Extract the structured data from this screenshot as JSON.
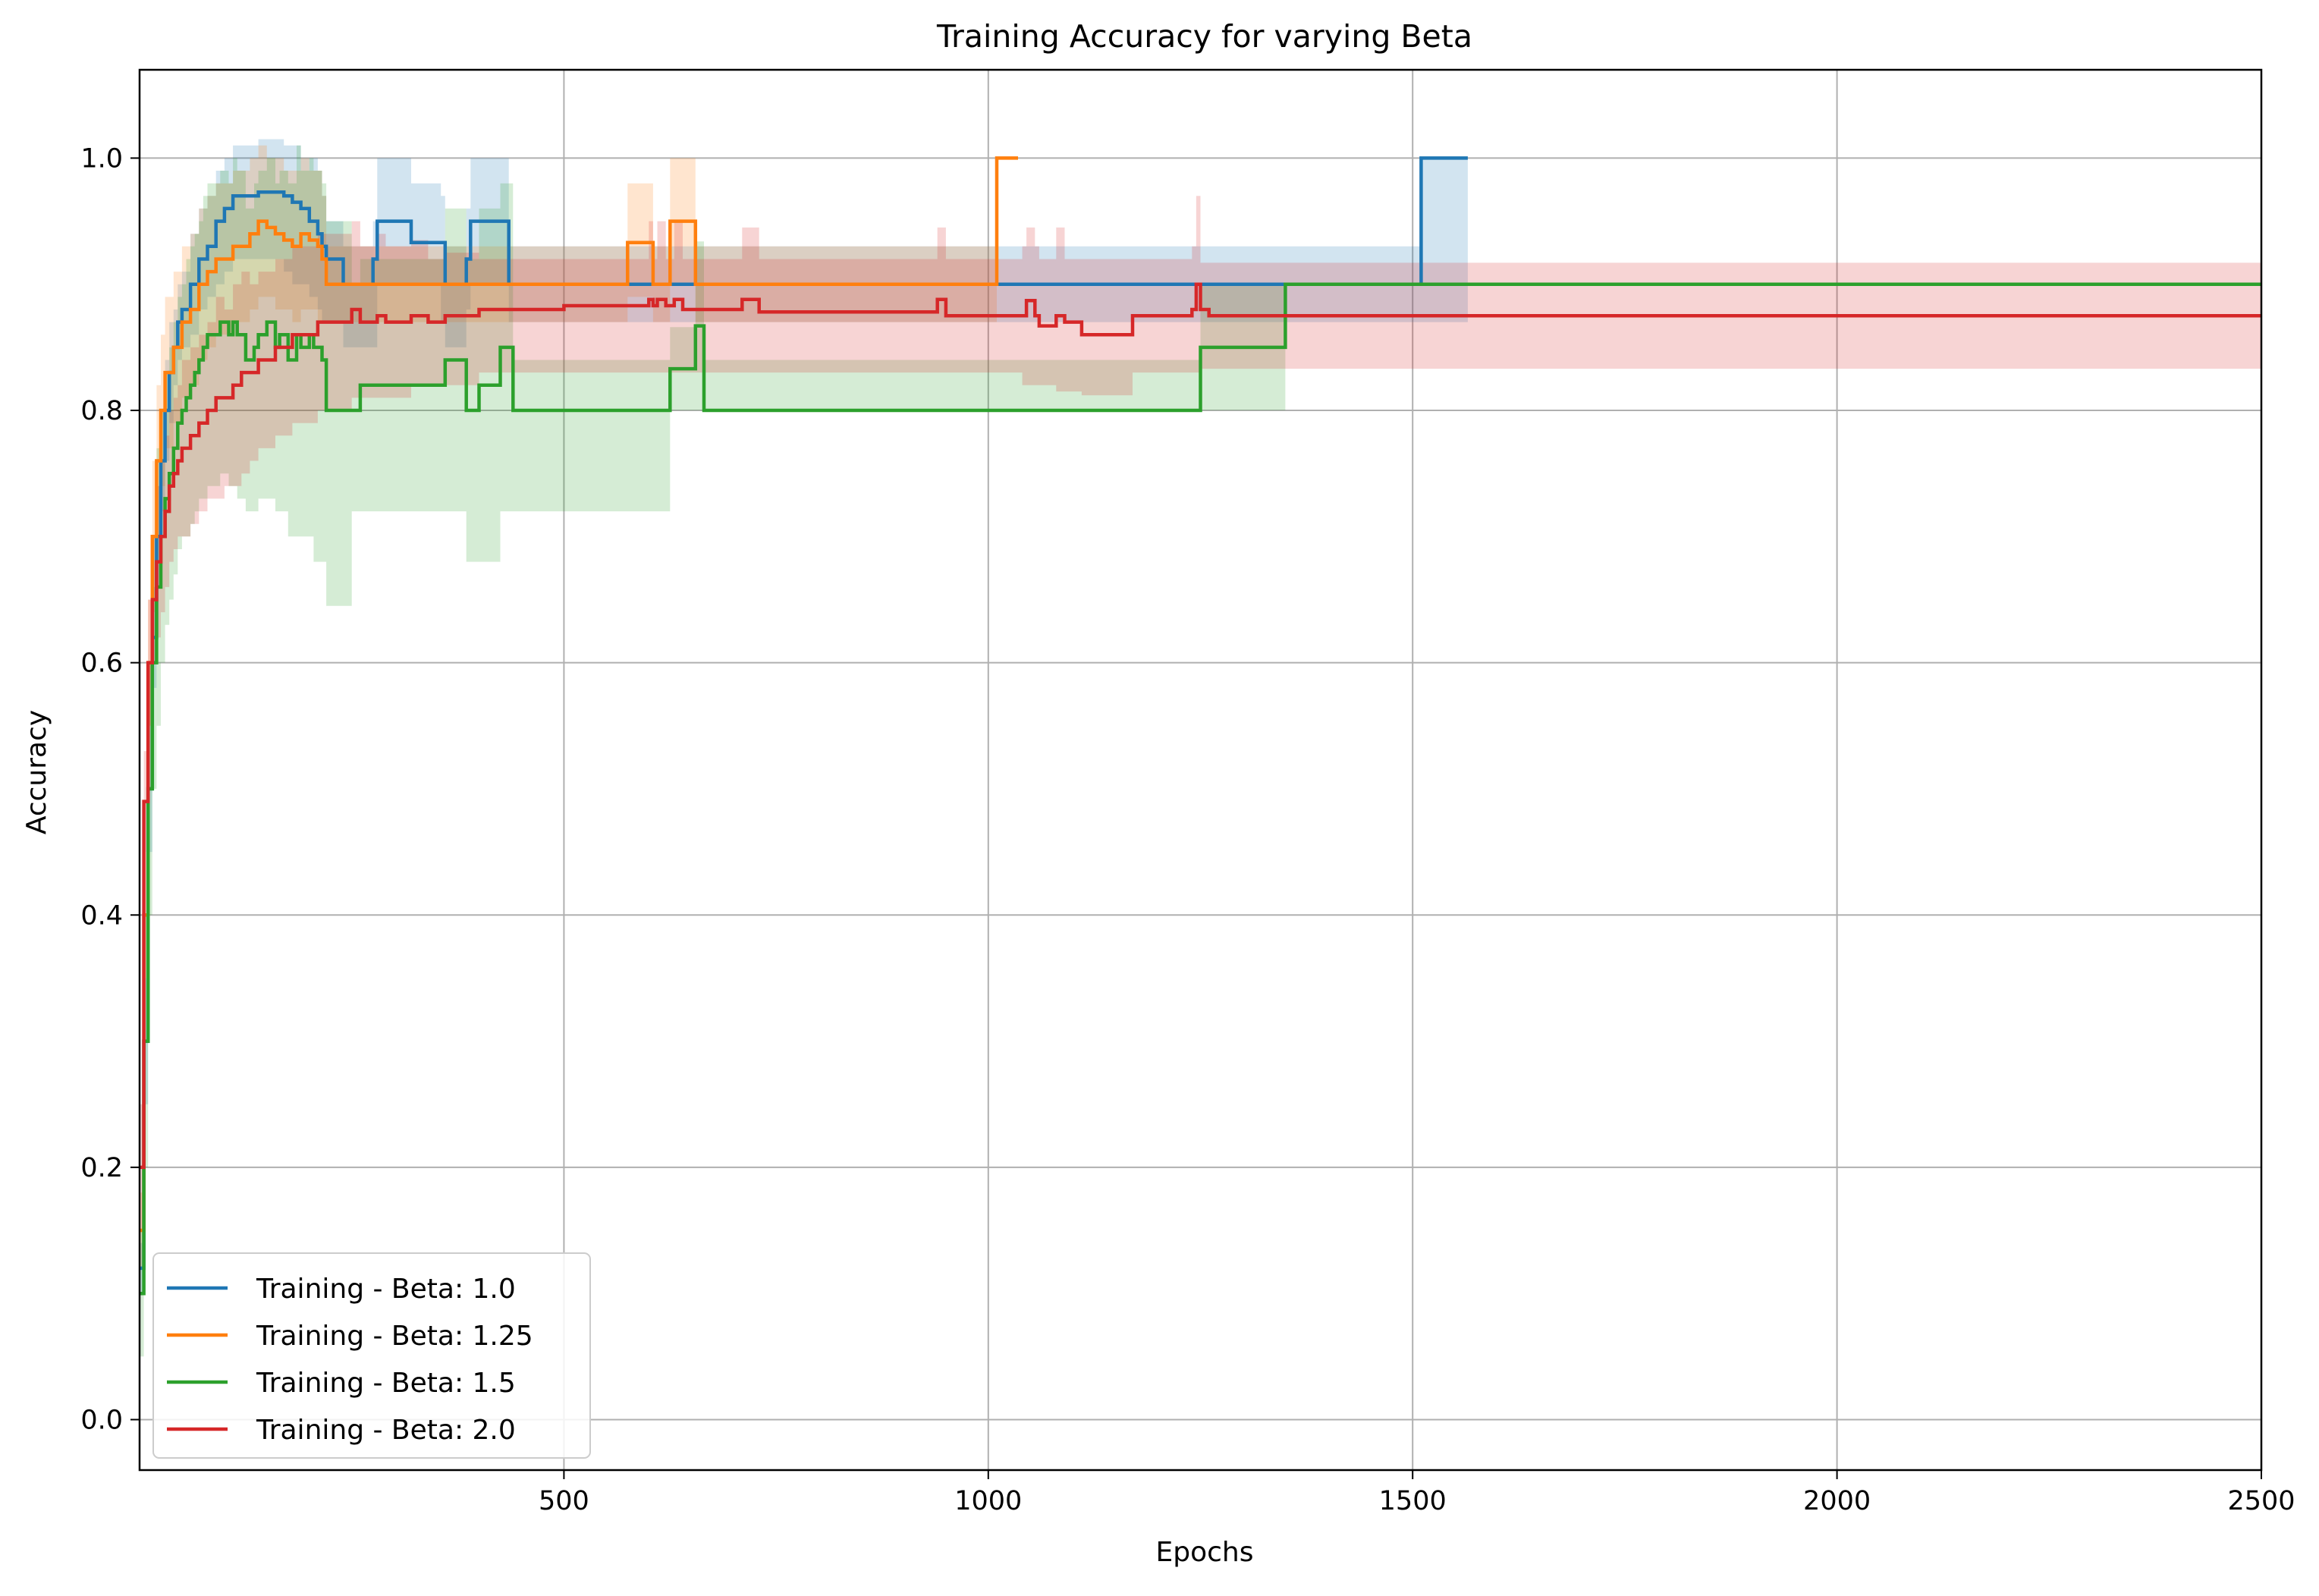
{
  "chart_data": {
    "type": "line",
    "title": "Training Accuracy for varying Beta",
    "xlabel": "Epochs",
    "ylabel": "Accuracy",
    "xlim": [
      0,
      2500
    ],
    "ylim": [
      -0.04,
      1.07
    ],
    "xticks": [
      500,
      1000,
      1500,
      2000,
      2500
    ],
    "yticks": [
      0.0,
      0.2,
      0.4,
      0.6,
      0.8,
      1.0
    ],
    "xtick_labels": [
      "500",
      "1000",
      "1500",
      "2000",
      "2500"
    ],
    "ytick_labels": [
      "0.0",
      "0.2",
      "0.4",
      "0.6",
      "0.8",
      "1.0"
    ],
    "grid": true,
    "legend_position": "lower-left",
    "series": [
      {
        "name": "Training - Beta: 1.0",
        "color": "#1f77b4",
        "x": [
          1,
          5,
          10,
          15,
          20,
          25,
          30,
          35,
          40,
          45,
          50,
          60,
          70,
          80,
          90,
          100,
          110,
          120,
          130,
          140,
          150,
          160,
          170,
          180,
          190,
          200,
          210,
          215,
          220,
          240,
          270,
          275,
          280,
          300,
          310,
          320,
          350,
          355,
          360,
          380,
          385,
          390,
          400,
          420,
          430,
          435,
          440,
          500,
          550,
          600,
          640,
          650,
          660,
          700,
          800,
          900,
          1000,
          1100,
          1200,
          1300,
          1400,
          1500,
          1505,
          1510,
          1520,
          1540,
          1565
        ],
        "y": [
          0.12,
          0.3,
          0.5,
          0.62,
          0.7,
          0.76,
          0.8,
          0.83,
          0.85,
          0.87,
          0.88,
          0.9,
          0.92,
          0.93,
          0.95,
          0.96,
          0.97,
          0.97,
          0.97,
          0.973,
          0.973,
          0.973,
          0.97,
          0.965,
          0.96,
          0.95,
          0.94,
          0.93,
          0.92,
          0.9,
          0.9,
          0.92,
          0.95,
          0.95,
          0.95,
          0.933,
          0.933,
          0.933,
          0.9,
          0.9,
          0.92,
          0.95,
          0.95,
          0.95,
          0.95,
          0.9,
          0.9,
          0.9,
          0.9,
          0.9,
          0.9,
          0.9,
          0.9,
          0.9,
          0.9,
          0.9,
          0.9,
          0.9,
          0.9,
          0.9,
          0.9,
          0.9,
          0.9,
          1.0,
          1.0,
          1.0,
          1.0
        ],
        "band_low": [
          0.1,
          0.25,
          0.45,
          0.58,
          0.66,
          0.72,
          0.76,
          0.79,
          0.82,
          0.84,
          0.85,
          0.86,
          0.88,
          0.89,
          0.9,
          0.91,
          0.92,
          0.92,
          0.92,
          0.92,
          0.92,
          0.92,
          0.91,
          0.9,
          0.9,
          0.89,
          0.88,
          0.87,
          0.87,
          0.85,
          0.85,
          0.85,
          0.9,
          0.9,
          0.9,
          0.9,
          0.9,
          0.87,
          0.85,
          0.85,
          0.88,
          0.9,
          0.9,
          0.9,
          0.9,
          0.87,
          0.87,
          0.87,
          0.87,
          0.87,
          0.87,
          0.87,
          0.87,
          0.87,
          0.87,
          0.87,
          0.87,
          0.87,
          0.87,
          0.87,
          0.87,
          0.87,
          0.87,
          0.87,
          0.87,
          0.87,
          0.87
        ],
        "band_high": [
          0.14,
          0.35,
          0.55,
          0.66,
          0.74,
          0.8,
          0.84,
          0.87,
          0.88,
          0.9,
          0.91,
          0.94,
          0.96,
          0.97,
          0.99,
          1.0,
          1.01,
          1.01,
          1.01,
          1.015,
          1.015,
          1.015,
          1.01,
          1.01,
          1.0,
          1.0,
          0.99,
          0.97,
          0.95,
          0.93,
          0.93,
          0.95,
          1.0,
          1.0,
          1.0,
          0.98,
          0.98,
          0.97,
          0.93,
          0.93,
          0.96,
          1.0,
          1.0,
          1.0,
          1.0,
          0.93,
          0.93,
          0.93,
          0.93,
          0.93,
          0.93,
          0.93,
          0.93,
          0.93,
          0.93,
          0.93,
          0.93,
          0.93,
          0.93,
          0.93,
          0.93,
          0.93,
          0.93,
          1.0,
          1.0,
          1.0,
          1.0
        ]
      },
      {
        "name": "Training - Beta: 1.25",
        "color": "#ff7f0e",
        "x": [
          1,
          5,
          10,
          15,
          20,
          25,
          30,
          40,
          50,
          60,
          70,
          80,
          90,
          100,
          110,
          120,
          130,
          140,
          150,
          160,
          170,
          180,
          190,
          200,
          210,
          215,
          220,
          300,
          400,
          500,
          570,
          575,
          580,
          600,
          605,
          610,
          620,
          625,
          630,
          650,
          655,
          660,
          700,
          800,
          900,
          1000,
          1005,
          1010,
          1020,
          1035
        ],
        "y": [
          0.15,
          0.4,
          0.6,
          0.7,
          0.76,
          0.8,
          0.83,
          0.85,
          0.87,
          0.88,
          0.9,
          0.91,
          0.92,
          0.92,
          0.93,
          0.93,
          0.94,
          0.95,
          0.945,
          0.94,
          0.935,
          0.93,
          0.94,
          0.935,
          0.93,
          0.92,
          0.9,
          0.9,
          0.9,
          0.9,
          0.9,
          0.933,
          0.933,
          0.933,
          0.9,
          0.9,
          0.9,
          0.95,
          0.95,
          0.95,
          0.9,
          0.9,
          0.9,
          0.9,
          0.9,
          0.9,
          0.9,
          1.0,
          1.0,
          1.0
        ],
        "band_low": [
          0.12,
          0.35,
          0.55,
          0.64,
          0.7,
          0.74,
          0.77,
          0.79,
          0.81,
          0.82,
          0.84,
          0.85,
          0.86,
          0.86,
          0.87,
          0.87,
          0.88,
          0.89,
          0.89,
          0.88,
          0.88,
          0.87,
          0.88,
          0.88,
          0.87,
          0.87,
          0.87,
          0.87,
          0.87,
          0.87,
          0.87,
          0.89,
          0.89,
          0.89,
          0.87,
          0.87,
          0.87,
          0.9,
          0.9,
          0.9,
          0.87,
          0.87,
          0.87,
          0.87,
          0.87,
          0.87,
          0.87,
          1.0,
          1.0,
          1.0
        ],
        "band_high": [
          0.18,
          0.45,
          0.65,
          0.76,
          0.82,
          0.86,
          0.89,
          0.91,
          0.93,
          0.94,
          0.96,
          0.97,
          0.98,
          0.98,
          0.99,
          0.99,
          1.0,
          1.01,
          1.0,
          1.0,
          0.99,
          0.99,
          1.0,
          0.99,
          0.99,
          0.97,
          0.93,
          0.93,
          0.93,
          0.93,
          0.93,
          0.98,
          0.98,
          0.98,
          0.93,
          0.93,
          0.93,
          1.0,
          1.0,
          1.0,
          0.93,
          0.93,
          0.93,
          0.93,
          0.93,
          0.93,
          0.93,
          1.0,
          1.0,
          1.0
        ]
      },
      {
        "name": "Training - Beta: 1.5",
        "color": "#2ca02c",
        "x": [
          1,
          5,
          10,
          15,
          20,
          25,
          30,
          35,
          40,
          45,
          50,
          55,
          60,
          65,
          70,
          75,
          80,
          85,
          90,
          95,
          100,
          105,
          110,
          115,
          120,
          125,
          130,
          135,
          140,
          145,
          150,
          155,
          160,
          165,
          170,
          175,
          180,
          185,
          190,
          195,
          200,
          205,
          210,
          215,
          220,
          230,
          240,
          250,
          260,
          270,
          280,
          300,
          350,
          360,
          370,
          380,
          385,
          390,
          400,
          410,
          420,
          425,
          430,
          440,
          500,
          550,
          600,
          620,
          625,
          630,
          650,
          655,
          660,
          665,
          700,
          800,
          900,
          1000,
          1100,
          1200,
          1240,
          1245,
          1250,
          1300,
          1345,
          1350,
          1400,
          1600,
          1800,
          2000,
          2200,
          2500
        ],
        "y": [
          0.1,
          0.3,
          0.5,
          0.6,
          0.66,
          0.7,
          0.73,
          0.75,
          0.77,
          0.79,
          0.8,
          0.81,
          0.82,
          0.83,
          0.84,
          0.85,
          0.86,
          0.86,
          0.86,
          0.87,
          0.87,
          0.86,
          0.87,
          0.86,
          0.86,
          0.84,
          0.84,
          0.85,
          0.86,
          0.86,
          0.87,
          0.87,
          0.85,
          0.86,
          0.86,
          0.84,
          0.84,
          0.86,
          0.85,
          0.85,
          0.86,
          0.85,
          0.85,
          0.84,
          0.8,
          0.8,
          0.8,
          0.8,
          0.82,
          0.82,
          0.82,
          0.82,
          0.82,
          0.84,
          0.84,
          0.84,
          0.8,
          0.8,
          0.82,
          0.82,
          0.82,
          0.85,
          0.85,
          0.8,
          0.8,
          0.8,
          0.8,
          0.8,
          0.833,
          0.833,
          0.833,
          0.867,
          0.867,
          0.8,
          0.8,
          0.8,
          0.8,
          0.8,
          0.8,
          0.8,
          0.8,
          0.8,
          0.85,
          0.85,
          0.85,
          0.9,
          0.9,
          0.9,
          0.9,
          0.9,
          0.9,
          0.9
        ],
        "band_low": [
          0.05,
          0.2,
          0.4,
          0.5,
          0.55,
          0.6,
          0.63,
          0.65,
          0.67,
          0.69,
          0.7,
          0.7,
          0.71,
          0.72,
          0.73,
          0.73,
          0.74,
          0.74,
          0.74,
          0.75,
          0.75,
          0.74,
          0.74,
          0.73,
          0.73,
          0.72,
          0.72,
          0.72,
          0.73,
          0.73,
          0.73,
          0.73,
          0.72,
          0.72,
          0.72,
          0.7,
          0.7,
          0.7,
          0.7,
          0.7,
          0.7,
          0.68,
          0.68,
          0.68,
          0.645,
          0.645,
          0.645,
          0.72,
          0.72,
          0.72,
          0.72,
          0.72,
          0.72,
          0.72,
          0.72,
          0.72,
          0.68,
          0.68,
          0.68,
          0.68,
          0.68,
          0.72,
          0.72,
          0.72,
          0.72,
          0.72,
          0.72,
          0.72,
          0.8,
          0.8,
          0.8,
          0.8,
          0.8,
          0.8,
          0.8,
          0.8,
          0.8,
          0.8,
          0.8,
          0.8,
          0.8,
          0.8,
          0.8,
          0.8,
          0.8,
          0.9,
          0.9,
          0.9,
          0.9,
          0.9,
          0.9,
          0.9
        ],
        "band_high": [
          0.15,
          0.4,
          0.6,
          0.7,
          0.77,
          0.8,
          0.83,
          0.85,
          0.87,
          0.89,
          0.9,
          0.92,
          0.93,
          0.94,
          0.95,
          0.97,
          0.98,
          0.98,
          0.98,
          0.99,
          0.99,
          0.98,
          1.0,
          0.99,
          0.99,
          0.96,
          0.96,
          0.98,
          0.99,
          0.99,
          1.0,
          1.0,
          0.98,
          0.99,
          0.99,
          0.98,
          0.98,
          1.01,
          0.99,
          0.99,
          1.0,
          0.99,
          0.99,
          0.98,
          0.95,
          0.95,
          0.95,
          0.9,
          0.92,
          0.92,
          0.92,
          0.92,
          0.92,
          0.96,
          0.96,
          0.96,
          0.92,
          0.92,
          0.96,
          0.96,
          0.96,
          0.98,
          0.98,
          0.84,
          0.84,
          0.84,
          0.84,
          0.84,
          0.866,
          0.866,
          0.866,
          0.934,
          0.934,
          0.84,
          0.84,
          0.84,
          0.84,
          0.84,
          0.84,
          0.84,
          0.84,
          0.84,
          0.9,
          0.9,
          0.9,
          0.9,
          0.9,
          0.9,
          0.9,
          0.9,
          0.9,
          0.9
        ]
      },
      {
        "name": "Training - Beta: 2.0",
        "color": "#d62728",
        "x": [
          1,
          5,
          10,
          15,
          20,
          25,
          30,
          35,
          40,
          45,
          50,
          60,
          70,
          80,
          90,
          100,
          110,
          120,
          130,
          140,
          150,
          160,
          170,
          180,
          190,
          200,
          210,
          220,
          230,
          240,
          250,
          260,
          270,
          280,
          290,
          300,
          320,
          340,
          360,
          380,
          400,
          420,
          440,
          460,
          480,
          500,
          540,
          580,
          600,
          605,
          610,
          620,
          630,
          640,
          660,
          700,
          710,
          720,
          730,
          800,
          900,
          940,
          950,
          960,
          1000,
          1040,
          1045,
          1055,
          1060,
          1080,
          1090,
          1100,
          1110,
          1160,
          1170,
          1200,
          1240,
          1245,
          1250,
          1260,
          1300,
          1400,
          1600,
          1800,
          2000,
          2200,
          2500
        ],
        "y": [
          0.2,
          0.49,
          0.6,
          0.65,
          0.68,
          0.7,
          0.72,
          0.74,
          0.75,
          0.76,
          0.77,
          0.78,
          0.79,
          0.8,
          0.81,
          0.81,
          0.82,
          0.83,
          0.83,
          0.84,
          0.84,
          0.85,
          0.85,
          0.86,
          0.86,
          0.86,
          0.87,
          0.87,
          0.87,
          0.87,
          0.88,
          0.87,
          0.87,
          0.875,
          0.87,
          0.87,
          0.875,
          0.87,
          0.875,
          0.875,
          0.88,
          0.88,
          0.88,
          0.88,
          0.88,
          0.883,
          0.883,
          0.883,
          0.888,
          0.883,
          0.888,
          0.883,
          0.888,
          0.88,
          0.88,
          0.88,
          0.888,
          0.888,
          0.878,
          0.878,
          0.878,
          0.888,
          0.875,
          0.875,
          0.875,
          0.875,
          0.887,
          0.875,
          0.867,
          0.875,
          0.87,
          0.87,
          0.86,
          0.86,
          0.875,
          0.875,
          0.88,
          0.9,
          0.88,
          0.875,
          0.875,
          0.875,
          0.875,
          0.875,
          0.875,
          0.875,
          0.875
        ],
        "band_low": [
          0.15,
          0.45,
          0.55,
          0.6,
          0.62,
          0.64,
          0.66,
          0.68,
          0.69,
          0.7,
          0.7,
          0.71,
          0.72,
          0.73,
          0.73,
          0.74,
          0.74,
          0.75,
          0.76,
          0.77,
          0.77,
          0.78,
          0.78,
          0.79,
          0.79,
          0.79,
          0.8,
          0.8,
          0.8,
          0.8,
          0.81,
          0.81,
          0.81,
          0.81,
          0.81,
          0.81,
          0.82,
          0.82,
          0.82,
          0.82,
          0.83,
          0.83,
          0.83,
          0.83,
          0.83,
          0.83,
          0.83,
          0.83,
          0.83,
          0.83,
          0.83,
          0.83,
          0.83,
          0.83,
          0.83,
          0.83,
          0.83,
          0.83,
          0.83,
          0.83,
          0.83,
          0.83,
          0.83,
          0.83,
          0.83,
          0.82,
          0.82,
          0.82,
          0.82,
          0.815,
          0.815,
          0.815,
          0.812,
          0.812,
          0.83,
          0.83,
          0.83,
          0.83,
          0.833,
          0.833,
          0.833,
          0.833,
          0.833,
          0.833,
          0.833,
          0.833,
          0.833
        ],
        "band_high": [
          0.25,
          0.53,
          0.65,
          0.7,
          0.74,
          0.76,
          0.78,
          0.8,
          0.81,
          0.82,
          0.84,
          0.85,
          0.86,
          0.87,
          0.89,
          0.88,
          0.9,
          0.91,
          0.9,
          0.91,
          0.91,
          0.92,
          0.92,
          0.93,
          0.93,
          0.93,
          0.94,
          0.94,
          0.94,
          0.94,
          0.95,
          0.93,
          0.93,
          0.94,
          0.93,
          0.93,
          0.935,
          0.92,
          0.925,
          0.925,
          0.92,
          0.92,
          0.92,
          0.92,
          0.92,
          0.92,
          0.92,
          0.92,
          0.95,
          0.92,
          0.95,
          0.92,
          0.95,
          0.92,
          0.92,
          0.92,
          0.945,
          0.945,
          0.92,
          0.92,
          0.92,
          0.945,
          0.92,
          0.92,
          0.92,
          0.93,
          0.945,
          0.93,
          0.92,
          0.945,
          0.92,
          0.92,
          0.92,
          0.92,
          0.92,
          0.92,
          0.93,
          0.97,
          0.917,
          0.917,
          0.917,
          0.917,
          0.917,
          0.917,
          0.917,
          0.917,
          0.917
        ]
      }
    ]
  }
}
